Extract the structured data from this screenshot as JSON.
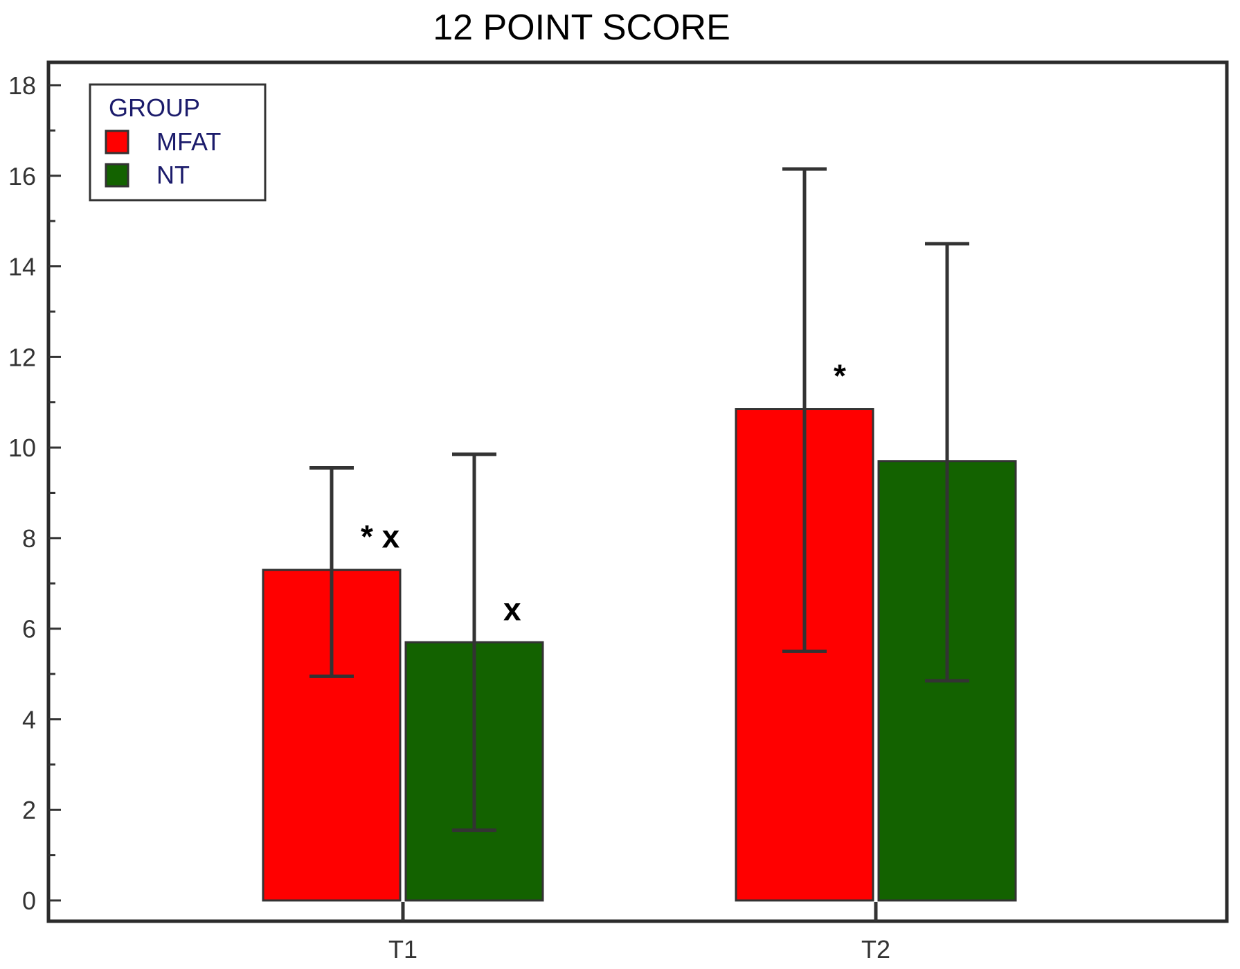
{
  "chart_data": {
    "type": "bar",
    "title": "12 POINT SCORE",
    "xlabel": "",
    "ylabel": "",
    "categories": [
      "T1",
      "T2"
    ],
    "ylim": [
      0,
      18
    ],
    "yticks": [
      0,
      2,
      4,
      6,
      8,
      10,
      12,
      14,
      16,
      18
    ],
    "grid": false,
    "legend": {
      "title": "GROUP",
      "placement": "top-left"
    },
    "series": [
      {
        "name": "MFAT",
        "color": "#ff0000",
        "values": [
          7.3,
          10.85
        ],
        "error_low": [
          4.95,
          5.5
        ],
        "error_high": [
          9.55,
          16.15
        ],
        "annotations": [
          "* x",
          "*"
        ]
      },
      {
        "name": "NT",
        "color": "#136200",
        "values": [
          5.7,
          9.7
        ],
        "error_low": [
          1.55,
          4.85
        ],
        "error_high": [
          9.85,
          14.5
        ],
        "annotations": [
          "x",
          ""
        ]
      }
    ]
  }
}
